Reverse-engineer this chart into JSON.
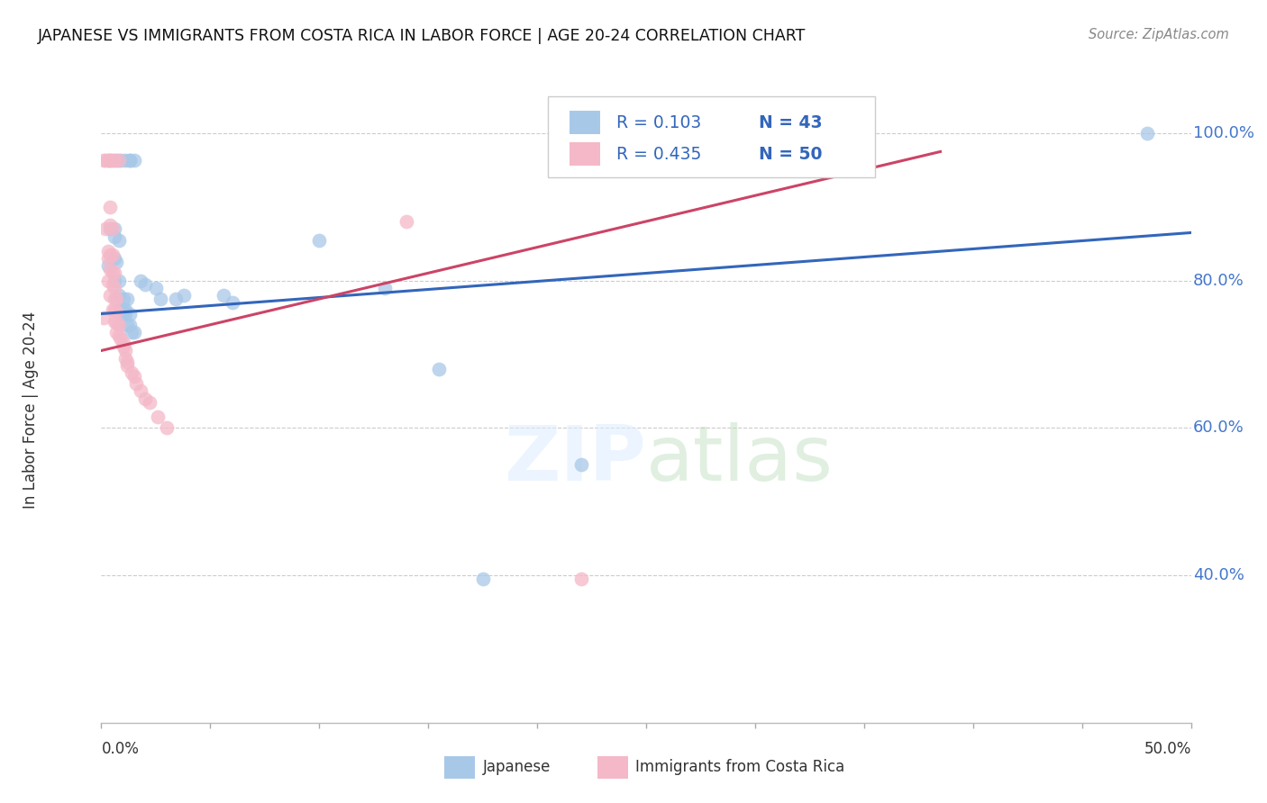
{
  "title": "JAPANESE VS IMMIGRANTS FROM COSTA RICA IN LABOR FORCE | AGE 20-24 CORRELATION CHART",
  "source": "Source: ZipAtlas.com",
  "ylabel": "In Labor Force | Age 20-24",
  "watermark": "ZIPatlas",
  "blue_color": "#a8c8e8",
  "pink_color": "#f4b8c8",
  "blue_line_color": "#3366bb",
  "pink_line_color": "#cc4466",
  "xlim": [
    0.0,
    0.5
  ],
  "ylim": [
    0.2,
    1.05
  ],
  "yticks": [
    0.4,
    0.6,
    0.8,
    1.0
  ],
  "xticks": [
    0.0,
    0.05,
    0.1,
    0.15,
    0.2,
    0.25,
    0.3,
    0.35,
    0.4,
    0.45,
    0.5
  ],
  "blue_line": {
    "x0": 0.0,
    "y0": 0.755,
    "x1": 0.5,
    "y1": 0.865
  },
  "pink_line": {
    "x0": 0.0,
    "y0": 0.705,
    "x1": 0.385,
    "y1": 0.975
  },
  "blue_scatter": [
    [
      0.004,
      0.963
    ],
    [
      0.007,
      0.963
    ],
    [
      0.009,
      0.963
    ],
    [
      0.011,
      0.963
    ],
    [
      0.013,
      0.963
    ],
    [
      0.013,
      0.963
    ],
    [
      0.015,
      0.963
    ],
    [
      0.004,
      0.87
    ],
    [
      0.006,
      0.87
    ],
    [
      0.003,
      0.82
    ],
    [
      0.006,
      0.86
    ],
    [
      0.008,
      0.855
    ],
    [
      0.006,
      0.83
    ],
    [
      0.007,
      0.825
    ],
    [
      0.006,
      0.8
    ],
    [
      0.008,
      0.8
    ],
    [
      0.008,
      0.78
    ],
    [
      0.01,
      0.775
    ],
    [
      0.012,
      0.775
    ],
    [
      0.009,
      0.76
    ],
    [
      0.01,
      0.76
    ],
    [
      0.011,
      0.76
    ],
    [
      0.01,
      0.755
    ],
    [
      0.011,
      0.755
    ],
    [
      0.013,
      0.755
    ],
    [
      0.012,
      0.74
    ],
    [
      0.013,
      0.74
    ],
    [
      0.014,
      0.73
    ],
    [
      0.015,
      0.73
    ],
    [
      0.018,
      0.8
    ],
    [
      0.02,
      0.795
    ],
    [
      0.025,
      0.79
    ],
    [
      0.027,
      0.775
    ],
    [
      0.034,
      0.775
    ],
    [
      0.038,
      0.78
    ],
    [
      0.056,
      0.78
    ],
    [
      0.06,
      0.77
    ],
    [
      0.1,
      0.855
    ],
    [
      0.13,
      0.79
    ],
    [
      0.155,
      0.68
    ],
    [
      0.175,
      0.395
    ],
    [
      0.22,
      0.55
    ],
    [
      0.48,
      1.0
    ]
  ],
  "pink_scatter": [
    [
      0.001,
      0.963
    ],
    [
      0.002,
      0.963
    ],
    [
      0.003,
      0.963
    ],
    [
      0.004,
      0.963
    ],
    [
      0.005,
      0.963
    ],
    [
      0.006,
      0.963
    ],
    [
      0.008,
      0.963
    ],
    [
      0.002,
      0.87
    ],
    [
      0.004,
      0.9
    ],
    [
      0.003,
      0.83
    ],
    [
      0.004,
      0.875
    ],
    [
      0.005,
      0.87
    ],
    [
      0.003,
      0.84
    ],
    [
      0.004,
      0.835
    ],
    [
      0.005,
      0.835
    ],
    [
      0.004,
      0.815
    ],
    [
      0.005,
      0.81
    ],
    [
      0.006,
      0.81
    ],
    [
      0.003,
      0.8
    ],
    [
      0.005,
      0.795
    ],
    [
      0.006,
      0.79
    ],
    [
      0.004,
      0.78
    ],
    [
      0.006,
      0.775
    ],
    [
      0.007,
      0.775
    ],
    [
      0.005,
      0.76
    ],
    [
      0.006,
      0.76
    ],
    [
      0.007,
      0.758
    ],
    [
      0.006,
      0.745
    ],
    [
      0.007,
      0.743
    ],
    [
      0.008,
      0.74
    ],
    [
      0.007,
      0.73
    ],
    [
      0.008,
      0.725
    ],
    [
      0.009,
      0.72
    ],
    [
      0.01,
      0.715
    ],
    [
      0.01,
      0.71
    ],
    [
      0.011,
      0.705
    ],
    [
      0.011,
      0.695
    ],
    [
      0.012,
      0.69
    ],
    [
      0.012,
      0.685
    ],
    [
      0.014,
      0.675
    ],
    [
      0.015,
      0.67
    ],
    [
      0.016,
      0.66
    ],
    [
      0.018,
      0.65
    ],
    [
      0.02,
      0.64
    ],
    [
      0.022,
      0.635
    ],
    [
      0.026,
      0.615
    ],
    [
      0.03,
      0.6
    ],
    [
      0.001,
      0.75
    ],
    [
      0.14,
      0.88
    ],
    [
      0.22,
      0.395
    ]
  ]
}
